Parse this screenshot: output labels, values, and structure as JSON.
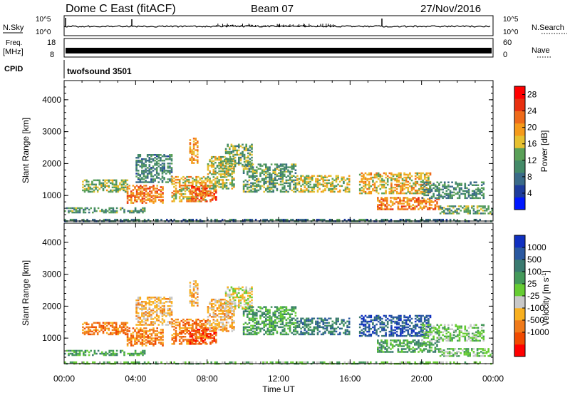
{
  "header": {
    "station": "Dome C East (fitACF)",
    "beam": "Beam 07",
    "date": "27/Nov/2016"
  },
  "panels": {
    "nsky": {
      "label": "N.Sky",
      "tick_top": "10^5",
      "tick_bottom": "10^0"
    },
    "nsearch": {
      "label": "N.Search",
      "tick_top": "10^5",
      "tick_bottom": "10^0"
    },
    "freq": {
      "label_1": "Freq.",
      "label_2": "[MHz]",
      "tick_top": "18",
      "tick_bottom": "8"
    },
    "nave": {
      "label": "Nave",
      "tick_top": "60",
      "tick_bottom": "0"
    },
    "cpid": {
      "label": "CPID",
      "value": "twofsound 3501"
    }
  },
  "colors": {
    "power": [
      "#0018ff",
      "#1e3c9c",
      "#3a6a88",
      "#448a68",
      "#5aa058",
      "#e6c030",
      "#f59a1a",
      "#ee6a1a",
      "#e83010",
      "#ff0000"
    ],
    "velocity": [
      "#ff0000",
      "#f04a00",
      "#f07a1a",
      "#f8b020",
      "#c8c8c8",
      "#66cc33",
      "#44995a",
      "#3a7a70",
      "#2a58a0",
      "#1030c0"
    ]
  },
  "chart_data": [
    {
      "type": "heatmap",
      "name": "power-panel",
      "xlabel": "Time UT",
      "ylabel": "Slant Range [km]",
      "xlim": [
        0,
        24
      ],
      "ylim": [
        200,
        4600
      ],
      "xticks": [
        "00:00",
        "04:00",
        "08:00",
        "12:00",
        "16:00",
        "20:00",
        "00:00"
      ],
      "yticks": [
        1000,
        2000,
        3000,
        4000
      ],
      "colorbar": {
        "label_main": "Power [dB]",
        "ticks": [
          4,
          8,
          12,
          16,
          20,
          24,
          28
        ],
        "range": [
          0,
          30
        ]
      },
      "regions": [
        {
          "t": [
            0.0,
            24.0
          ],
          "r": [
            180,
            260
          ],
          "v": 8
        },
        {
          "t": [
            0.0,
            4.5
          ],
          "r": [
            450,
            620
          ],
          "v": 11
        },
        {
          "t": [
            1.0,
            3.5
          ],
          "r": [
            1100,
            1500
          ],
          "v": 14
        },
        {
          "t": [
            3.5,
            5.5
          ],
          "r": [
            750,
            1300
          ],
          "v": 22
        },
        {
          "t": [
            4.0,
            6.0
          ],
          "r": [
            1400,
            2300
          ],
          "v": 9
        },
        {
          "t": [
            6.0,
            8.0
          ],
          "r": [
            800,
            1600
          ],
          "v": 18
        },
        {
          "t": [
            7.0,
            8.5
          ],
          "r": [
            800,
            1300
          ],
          "v": 24
        },
        {
          "t": [
            7.0,
            7.5
          ],
          "r": [
            2000,
            2800
          ],
          "v": 20
        },
        {
          "t": [
            8.0,
            9.5
          ],
          "r": [
            1200,
            2200
          ],
          "v": 15
        },
        {
          "t": [
            9.0,
            10.5
          ],
          "r": [
            1900,
            2600
          ],
          "v": 13
        },
        {
          "t": [
            10.0,
            13.0
          ],
          "r": [
            1100,
            2000
          ],
          "v": 12
        },
        {
          "t": [
            13.0,
            16.0
          ],
          "r": [
            1100,
            1600
          ],
          "v": 16
        },
        {
          "t": [
            16.5,
            20.5
          ],
          "r": [
            1050,
            1700
          ],
          "v": 18
        },
        {
          "t": [
            17.5,
            21.0
          ],
          "r": [
            550,
            950
          ],
          "v": 22
        },
        {
          "t": [
            20.0,
            23.5
          ],
          "r": [
            900,
            1400
          ],
          "v": 10
        },
        {
          "t": [
            21.0,
            24.0
          ],
          "r": [
            420,
            650
          ],
          "v": 12
        }
      ]
    },
    {
      "type": "heatmap",
      "name": "velocity-panel",
      "xlabel": "Time UT",
      "ylabel": "Slant Range [km]",
      "xlim": [
        0,
        24
      ],
      "ylim": [
        200,
        4600
      ],
      "xticks": [
        "00:00",
        "04:00",
        "08:00",
        "12:00",
        "16:00",
        "20:00",
        "00:00"
      ],
      "yticks": [
        1000,
        2000,
        3000,
        4000
      ],
      "colorbar": {
        "label_main": "Velocity [m s",
        "label_sup": "-1",
        "label_end": "]",
        "ticks": [
          "1000",
          "500",
          "100",
          "25",
          "-25",
          "-100",
          "-500",
          "-1000"
        ]
      },
      "regions": [
        {
          "t": [
            0.0,
            24.0
          ],
          "r": [
            180,
            260
          ],
          "v": 5
        },
        {
          "t": [
            0.0,
            4.5
          ],
          "r": [
            450,
            620
          ],
          "v": 6
        },
        {
          "t": [
            1.0,
            3.5
          ],
          "r": [
            1100,
            1500
          ],
          "v": 2
        },
        {
          "t": [
            3.5,
            5.5
          ],
          "r": [
            750,
            1300
          ],
          "v": 2
        },
        {
          "t": [
            4.0,
            6.0
          ],
          "r": [
            1400,
            2300
          ],
          "v": 3
        },
        {
          "t": [
            6.0,
            8.0
          ],
          "r": [
            800,
            1600
          ],
          "v": 2
        },
        {
          "t": [
            7.0,
            8.5
          ],
          "r": [
            800,
            1300
          ],
          "v": 1
        },
        {
          "t": [
            7.0,
            7.5
          ],
          "r": [
            2000,
            2800
          ],
          "v": 3
        },
        {
          "t": [
            8.0,
            9.5
          ],
          "r": [
            1200,
            2200
          ],
          "v": 3
        },
        {
          "t": [
            9.0,
            10.5
          ],
          "r": [
            1900,
            2600
          ],
          "v": 4
        },
        {
          "t": [
            10.0,
            13.0
          ],
          "r": [
            1100,
            2000
          ],
          "v": 6
        },
        {
          "t": [
            13.0,
            16.0
          ],
          "r": [
            1100,
            1600
          ],
          "v": 7
        },
        {
          "t": [
            16.5,
            20.5
          ],
          "r": [
            1050,
            1700
          ],
          "v": 8
        },
        {
          "t": [
            17.5,
            21.0
          ],
          "r": [
            550,
            950
          ],
          "v": 6
        },
        {
          "t": [
            20.0,
            23.5
          ],
          "r": [
            900,
            1400
          ],
          "v": 5
        },
        {
          "t": [
            21.0,
            24.0
          ],
          "r": [
            420,
            650
          ],
          "v": 5
        }
      ]
    }
  ]
}
